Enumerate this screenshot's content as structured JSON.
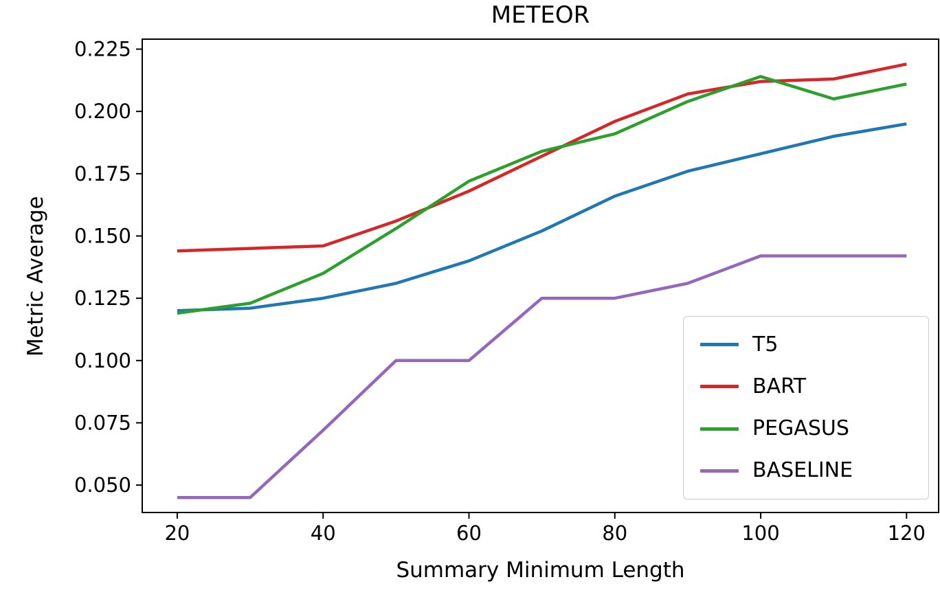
{
  "figure": {
    "title": "METEOR",
    "xlabel": "Summary Minimum Length",
    "ylabel": "Metric Average"
  },
  "chart_data": {
    "type": "line",
    "title": "METEOR",
    "xlabel": "Summary Minimum Length",
    "ylabel": "Metric Average",
    "x": [
      20,
      30,
      40,
      50,
      60,
      70,
      80,
      90,
      100,
      110,
      120
    ],
    "series": [
      {
        "name": "T5",
        "color": "#1f77b4",
        "values": [
          0.12,
          0.121,
          0.125,
          0.131,
          0.14,
          0.152,
          0.166,
          0.176,
          0.183,
          0.19,
          0.195
        ]
      },
      {
        "name": "BART",
        "color": "#d62728",
        "values": [
          0.144,
          0.145,
          0.146,
          0.156,
          0.168,
          0.182,
          0.196,
          0.207,
          0.212,
          0.213,
          0.219
        ]
      },
      {
        "name": "PEGASUS",
        "color": "#2ca02c",
        "values": [
          0.119,
          0.123,
          0.135,
          0.153,
          0.172,
          0.184,
          0.191,
          0.204,
          0.214,
          0.205,
          0.211
        ]
      },
      {
        "name": "BASELINE",
        "color": "#9467bd",
        "values": [
          0.045,
          0.045,
          0.072,
          0.1,
          0.1,
          0.125,
          0.125,
          0.131,
          0.142,
          0.142,
          0.142
        ]
      }
    ],
    "xlim": [
      15.2,
      124.4
    ],
    "ylim": [
      0.039,
      0.229
    ],
    "xticks": [
      20,
      40,
      60,
      80,
      100,
      120
    ],
    "yticks": [
      0.05,
      0.075,
      0.1,
      0.125,
      0.15,
      0.175,
      0.2,
      0.225
    ],
    "grid": false,
    "legend_position": "lower right",
    "line_width": 4.5,
    "axis_color": "#000000"
  }
}
